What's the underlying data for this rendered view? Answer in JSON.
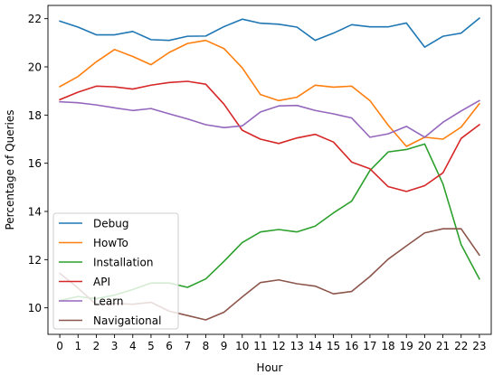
{
  "chart_data": {
    "type": "line",
    "title": "",
    "xlabel": "Hour",
    "ylabel": "Percentage of Queries",
    "x": [
      0,
      1,
      2,
      3,
      4,
      5,
      6,
      7,
      8,
      9,
      10,
      11,
      12,
      13,
      14,
      15,
      16,
      17,
      18,
      19,
      20,
      21,
      22,
      23
    ],
    "xlim": [
      -0.65,
      23.65
    ],
    "ylim": [
      8.9,
      22.55
    ],
    "yticks": [
      10,
      12,
      14,
      16,
      18,
      20,
      22
    ],
    "grid": false,
    "legend_position": "lower-left",
    "series": [
      {
        "name": "Debug",
        "color": "#1f77b4",
        "values": [
          21.9,
          21.65,
          21.33,
          21.33,
          21.47,
          21.13,
          21.1,
          21.27,
          21.28,
          21.67,
          21.98,
          21.81,
          21.77,
          21.65,
          21.1,
          21.4,
          21.75,
          21.66,
          21.66,
          21.82,
          20.82,
          21.27,
          21.4,
          22.02
        ]
      },
      {
        "name": "HowTo",
        "color": "#ff7f0e",
        "values": [
          19.18,
          19.6,
          20.21,
          20.72,
          20.43,
          20.09,
          20.6,
          20.97,
          21.1,
          20.76,
          19.96,
          18.85,
          18.6,
          18.74,
          19.24,
          19.16,
          19.2,
          18.6,
          17.58,
          16.7,
          17.08,
          17.0,
          17.5,
          18.47
        ]
      },
      {
        "name": "Installation",
        "color": "#2ca02c",
        "values": [
          10.3,
          10.47,
          10.38,
          10.53,
          10.76,
          11.03,
          11.03,
          10.85,
          11.2,
          11.93,
          12.71,
          13.15,
          13.25,
          13.15,
          13.39,
          13.94,
          14.43,
          15.7,
          16.47,
          16.57,
          16.8,
          15.15,
          12.62,
          11.2
        ]
      },
      {
        "name": "API",
        "color": "#d62728",
        "values": [
          18.64,
          18.95,
          19.2,
          19.17,
          19.08,
          19.24,
          19.35,
          19.4,
          19.28,
          18.45,
          17.37,
          17.0,
          16.82,
          17.05,
          17.2,
          16.88,
          16.05,
          15.77,
          15.03,
          14.83,
          15.07,
          15.6,
          17.03,
          17.6
        ]
      },
      {
        "name": "Learn",
        "color": "#9467bd",
        "values": [
          18.55,
          18.51,
          18.42,
          18.3,
          18.19,
          18.27,
          18.05,
          17.84,
          17.6,
          17.48,
          17.55,
          18.13,
          18.38,
          18.4,
          18.19,
          18.05,
          17.88,
          17.08,
          17.22,
          17.53,
          17.08,
          17.7,
          18.17,
          18.6
        ]
      },
      {
        "name": "Navigational",
        "color": "#8c564b",
        "values": [
          11.43,
          10.82,
          10.13,
          10.18,
          10.15,
          10.23,
          9.86,
          9.68,
          9.5,
          9.82,
          10.45,
          11.05,
          11.16,
          11.0,
          10.9,
          10.58,
          10.68,
          11.3,
          12.02,
          12.57,
          13.11,
          13.28,
          13.28,
          12.19
        ]
      }
    ]
  }
}
